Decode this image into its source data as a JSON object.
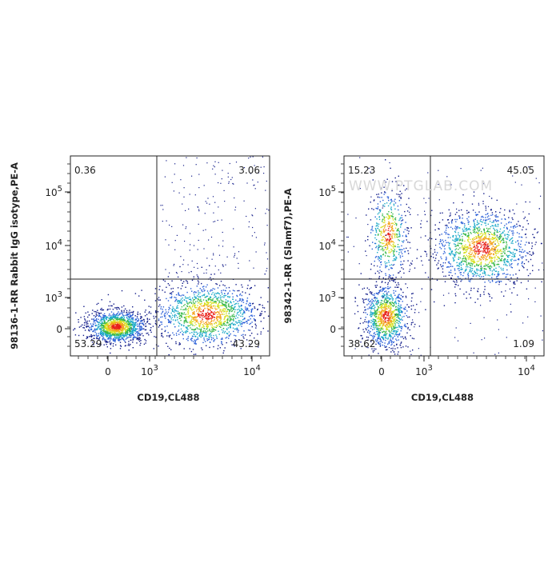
{
  "panels": [
    {
      "y_label": "98136-1-RR Rabbit IgG isotype,PE-A",
      "x_label": "CD19,CL488",
      "quadrants": {
        "upper_left": "0.36",
        "upper_right": "3.06",
        "lower_left": "53.29",
        "lower_right": "43.29"
      },
      "y_ticks": [
        {
          "base": "10",
          "exp": "5"
        },
        {
          "base": "10",
          "exp": "4"
        },
        {
          "base": "10",
          "exp": "3"
        },
        {
          "base": "0"
        }
      ],
      "x_ticks": [
        {
          "base": "0"
        },
        {
          "base": "10",
          "exp": "3"
        },
        {
          "base": "10",
          "exp": "4"
        }
      ]
    },
    {
      "y_label": "98342-1-RR (Slamf7),PE-A",
      "x_label": "CD19,CL488",
      "quadrants": {
        "upper_left": "15.23",
        "upper_right": "45.05",
        "lower_left": "38.62",
        "lower_right": "1.09"
      },
      "y_ticks": [
        {
          "base": "10",
          "exp": "5"
        },
        {
          "base": "10",
          "exp": "4"
        },
        {
          "base": "10",
          "exp": "3"
        },
        {
          "base": "0"
        }
      ],
      "x_ticks": [
        {
          "base": "0"
        },
        {
          "base": "10",
          "exp": "3"
        },
        {
          "base": "10",
          "exp": "4"
        }
      ],
      "watermark": "WWW.PTGLAB.COM"
    }
  ]
}
